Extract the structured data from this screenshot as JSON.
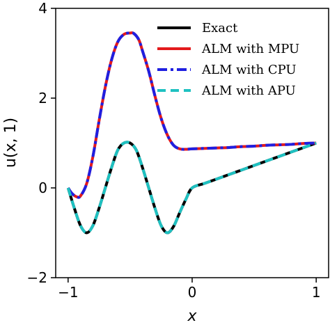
{
  "chart_data": {
    "type": "line",
    "xlabel": "x",
    "ylabel": "u(x, 1)",
    "xlim": [
      -1.1,
      1.1
    ],
    "ylim": [
      -2,
      4
    ],
    "xticks": [
      -1,
      0,
      1
    ],
    "xtick_labels": [
      "−1",
      "0",
      "1"
    ],
    "yticks": [
      -2,
      0,
      2,
      4
    ],
    "ytick_labels": [
      "−2",
      "0",
      "2",
      "4"
    ],
    "grid": false,
    "legend_position": "top-right",
    "series": [
      {
        "name": "Exact",
        "color": "#000000",
        "style": "solid",
        "x": [
          -1.0,
          -0.95,
          -0.9,
          -0.85,
          -0.8,
          -0.75,
          -0.7,
          -0.65,
          -0.6,
          -0.55,
          -0.5,
          -0.45,
          -0.4,
          -0.35,
          -0.3,
          -0.25,
          -0.2,
          -0.15,
          -0.1,
          -0.05,
          0.0,
          0.1,
          0.2,
          0.3,
          0.4,
          0.5,
          0.6,
          0.7,
          0.8,
          0.9,
          1.0
        ],
        "y": [
          0.0,
          -0.45,
          -0.84,
          -1.0,
          -0.84,
          -0.45,
          0.0,
          0.45,
          0.84,
          1.0,
          1.0,
          0.84,
          0.45,
          0.0,
          -0.45,
          -0.84,
          -1.0,
          -0.86,
          -0.55,
          -0.25,
          0.0,
          0.1,
          0.2,
          0.3,
          0.4,
          0.5,
          0.6,
          0.7,
          0.8,
          0.9,
          1.0
        ]
      },
      {
        "name": "ALM with MPU",
        "color": "#e31a1c",
        "style": "solid",
        "x": [
          -1.0,
          -0.97,
          -0.93,
          -0.9,
          -0.85,
          -0.8,
          -0.75,
          -0.7,
          -0.65,
          -0.6,
          -0.55,
          -0.5,
          -0.47,
          -0.43,
          -0.4,
          -0.35,
          -0.3,
          -0.25,
          -0.2,
          -0.15,
          -0.1,
          -0.05,
          0.0,
          0.1,
          0.2,
          0.3,
          0.4,
          0.5,
          0.6,
          0.7,
          0.8,
          0.9,
          1.0
        ],
        "y": [
          0.0,
          -0.12,
          -0.2,
          -0.18,
          0.1,
          0.7,
          1.5,
          2.25,
          2.85,
          3.25,
          3.42,
          3.45,
          3.44,
          3.3,
          3.05,
          2.6,
          2.05,
          1.55,
          1.18,
          0.95,
          0.87,
          0.86,
          0.87,
          0.88,
          0.89,
          0.9,
          0.92,
          0.93,
          0.95,
          0.96,
          0.97,
          0.99,
          1.0
        ]
      },
      {
        "name": "ALM with CPU",
        "color": "#1f1fe0",
        "style": "dashdot",
        "x": [
          -1.0,
          -0.97,
          -0.93,
          -0.9,
          -0.85,
          -0.8,
          -0.75,
          -0.7,
          -0.65,
          -0.6,
          -0.55,
          -0.5,
          -0.47,
          -0.43,
          -0.4,
          -0.35,
          -0.3,
          -0.25,
          -0.2,
          -0.15,
          -0.1,
          -0.05,
          0.0,
          0.1,
          0.2,
          0.3,
          0.4,
          0.5,
          0.6,
          0.7,
          0.8,
          0.9,
          1.0
        ],
        "y": [
          0.0,
          -0.12,
          -0.2,
          -0.18,
          0.1,
          0.7,
          1.5,
          2.25,
          2.85,
          3.25,
          3.42,
          3.45,
          3.44,
          3.3,
          3.05,
          2.6,
          2.05,
          1.55,
          1.18,
          0.95,
          0.87,
          0.86,
          0.87,
          0.88,
          0.89,
          0.9,
          0.92,
          0.93,
          0.95,
          0.96,
          0.97,
          0.99,
          1.0
        ]
      },
      {
        "name": "ALM with APU",
        "color": "#1fc1c1",
        "style": "dashed",
        "x": [
          -1.0,
          -0.95,
          -0.9,
          -0.85,
          -0.8,
          -0.75,
          -0.7,
          -0.65,
          -0.6,
          -0.55,
          -0.5,
          -0.45,
          -0.4,
          -0.35,
          -0.3,
          -0.25,
          -0.2,
          -0.15,
          -0.1,
          -0.05,
          0.0,
          0.1,
          0.2,
          0.3,
          0.4,
          0.5,
          0.6,
          0.7,
          0.8,
          0.9,
          1.0
        ],
        "y": [
          0.0,
          -0.45,
          -0.84,
          -1.0,
          -0.84,
          -0.45,
          0.0,
          0.45,
          0.84,
          1.0,
          1.0,
          0.84,
          0.45,
          0.0,
          -0.45,
          -0.84,
          -1.0,
          -0.86,
          -0.55,
          -0.25,
          0.0,
          0.1,
          0.2,
          0.3,
          0.4,
          0.5,
          0.6,
          0.7,
          0.8,
          0.9,
          1.0
        ]
      }
    ]
  }
}
